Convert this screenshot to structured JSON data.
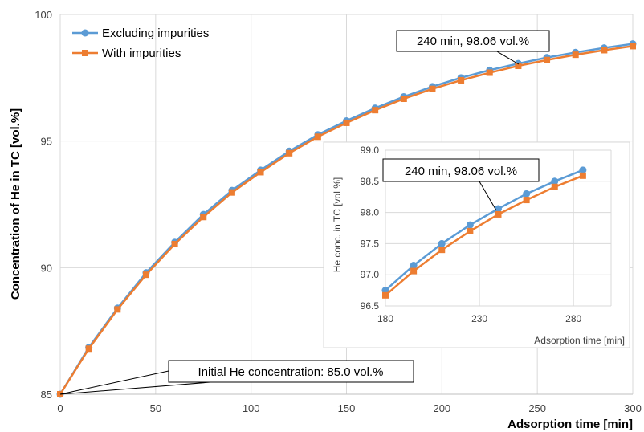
{
  "chart_data": {
    "type": "line",
    "xlabel": "Adsorption time [min]",
    "ylabel": "Concentration of He in TC [vol.%]",
    "xlim": [
      0,
      300
    ],
    "ylim": [
      85,
      100
    ],
    "x_ticks": [
      "0",
      "50",
      "100",
      "150",
      "200",
      "250",
      "300"
    ],
    "y_ticks": [
      "85",
      "90",
      "95",
      "100"
    ],
    "grid": true,
    "legend_position": "top-left",
    "x": [
      0,
      15,
      30,
      45,
      60,
      75,
      90,
      105,
      120,
      135,
      150,
      165,
      180,
      195,
      210,
      225,
      240,
      255,
      270,
      285,
      300
    ],
    "series": [
      {
        "name": "Excluding impurities",
        "color": "#5B9BD5",
        "marker": "circle",
        "values": [
          85.0,
          86.85,
          88.4,
          89.8,
          91.0,
          92.1,
          93.05,
          93.85,
          94.6,
          95.25,
          95.8,
          96.3,
          96.75,
          97.15,
          97.5,
          97.8,
          98.06,
          98.3,
          98.5,
          98.68,
          98.84
        ]
      },
      {
        "name": "With impurities",
        "color": "#ED7D31",
        "marker": "square",
        "values": [
          85.0,
          86.8,
          88.35,
          89.72,
          90.93,
          92.0,
          92.97,
          93.77,
          94.52,
          95.17,
          95.72,
          96.22,
          96.67,
          97.06,
          97.4,
          97.7,
          97.97,
          98.2,
          98.41,
          98.59,
          98.75
        ]
      }
    ],
    "annotations": [
      {
        "text": "240 min, 98.06 vol.%",
        "x": 240,
        "y": 98.06
      },
      {
        "text": "Initial He concentration: 85.0 vol.%",
        "x": 0,
        "y": 85.0
      }
    ],
    "inset": {
      "xlabel": "Adsorption time [min]",
      "ylabel": "He conc. in TC [vol.%]",
      "xlim": [
        180,
        300
      ],
      "ylim": [
        96.5,
        99.0
      ],
      "x_ticks": [
        "180",
        "230",
        "280"
      ],
      "y_ticks": [
        "96.5",
        "97.0",
        "97.5",
        "98.0",
        "98.5",
        "99.0"
      ],
      "annotation": {
        "text": "240 min, 98.06 vol.%",
        "x": 240,
        "y": 98.06
      }
    }
  }
}
